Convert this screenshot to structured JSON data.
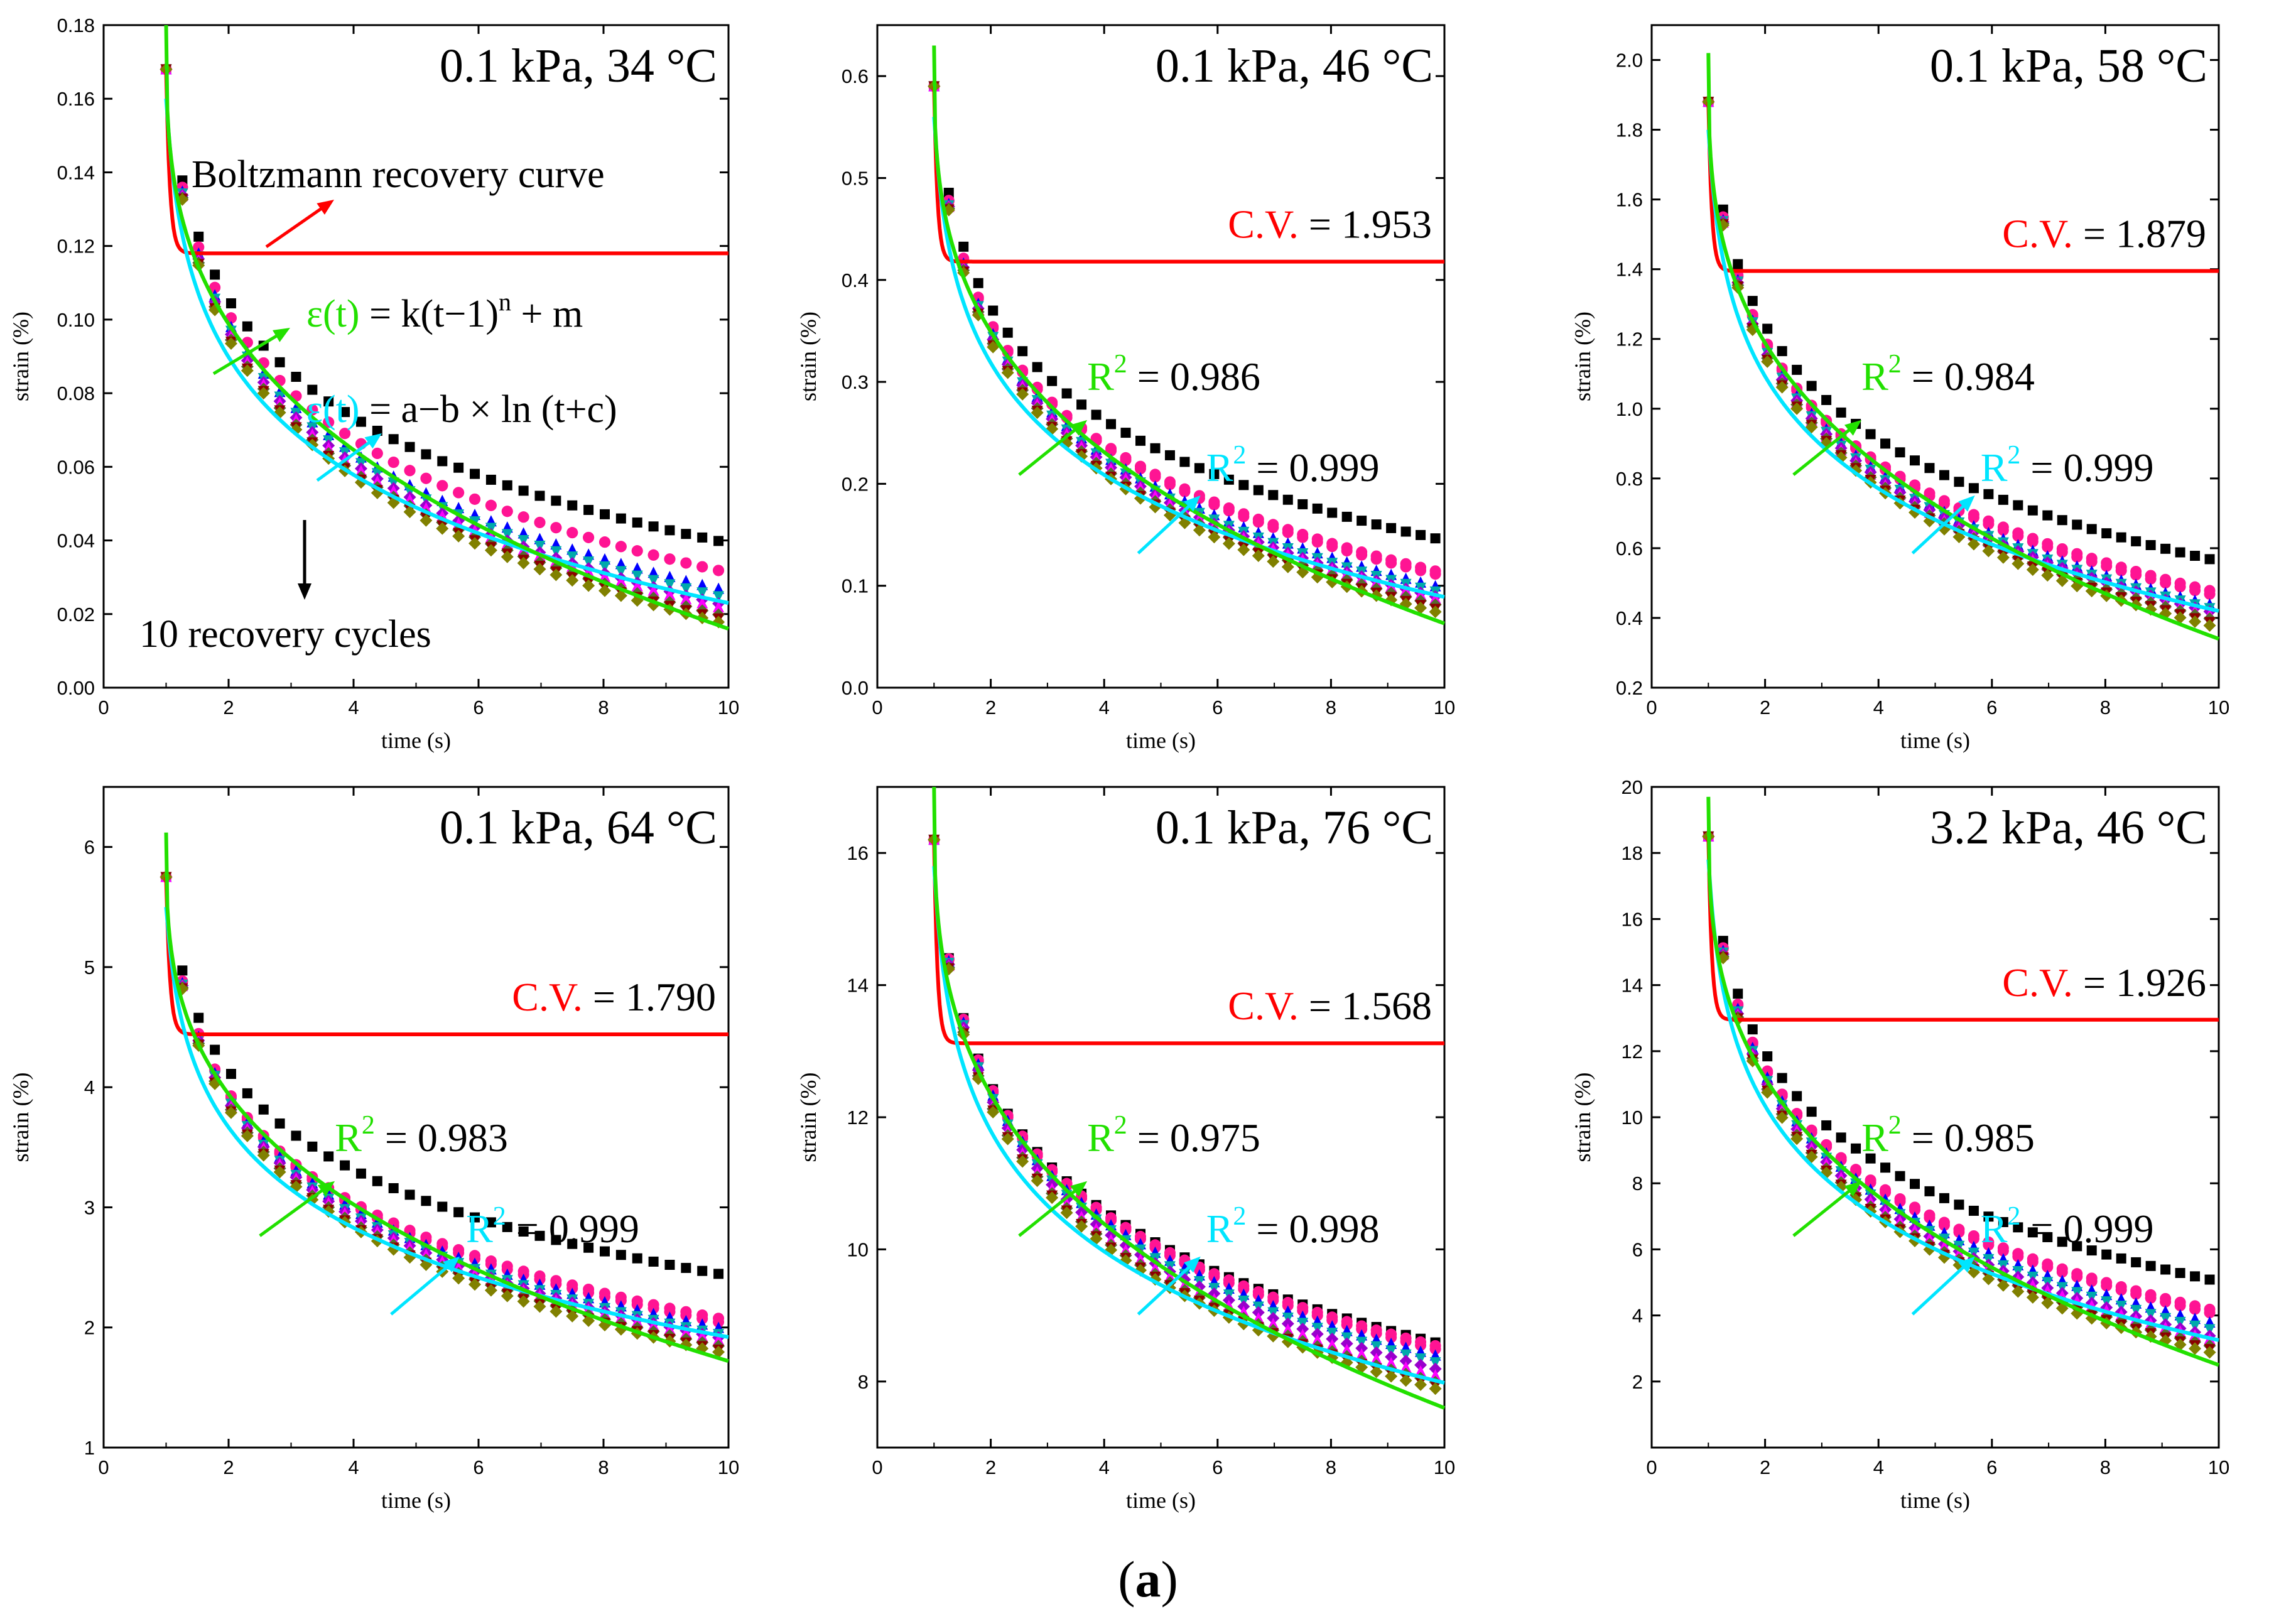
{
  "figure_label": {
    "open": "(",
    "letter": "a",
    "close": ")"
  },
  "colors": {
    "boltzmann": "#ff0000",
    "power": "#22e000",
    "log": "#00e5ff",
    "cycles": [
      "#000000",
      "#ff1493",
      "#ff1493",
      "#0000ff",
      "#00aaaa",
      "#9900cc",
      "#ff00ff",
      "#556b2f",
      "#8b0000",
      "#808000"
    ]
  },
  "chart_data": [
    {
      "type": "scatter",
      "title": "0.1 kPa, 34 °C",
      "xlabel": "time (s)",
      "ylabel": "strain (%)",
      "xlim": [
        0,
        10
      ],
      "ylim": [
        0,
        0.18
      ],
      "xticks": [
        0,
        2,
        4,
        6,
        8,
        10
      ],
      "yticks": [
        0.0,
        0.02,
        0.04,
        0.06,
        0.08,
        0.1,
        0.12,
        0.14,
        0.16,
        0.18
      ],
      "ytick_labels": [
        "0.00",
        "0.02",
        "0.04",
        "0.06",
        "0.08",
        "0.10",
        "0.12",
        "0.14",
        "0.16",
        "0.18"
      ],
      "series_ends": [
        0.04,
        0.032,
        0.032,
        0.027,
        0.025,
        0.023,
        0.022,
        0.02,
        0.019,
        0.018
      ],
      "start_value": 0.168,
      "boltzmann": {
        "peak": 0.168,
        "plateau": 0.118
      },
      "power_fit": {
        "start": 0.18,
        "end": 0.016
      },
      "log_fit": {
        "start": 0.16,
        "end": 0.023
      },
      "annotations": {
        "boltzmann_label": "Boltzmann recovery curve",
        "power_eq_left": "ε(t)",
        "power_eq_right": " = k(t−1)",
        "power_eq_sup": "n",
        "power_eq_tail": " + m",
        "log_eq_left": "ε(t)",
        "log_eq_right": " = a−b × ln (t+c)",
        "cycles_label": "10 recovery cycles"
      }
    },
    {
      "type": "scatter",
      "title": "0.1 kPa, 46 °C",
      "xlabel": "time (s)",
      "ylabel": "strain (%)",
      "xlim": [
        0,
        10
      ],
      "ylim": [
        0,
        0.65
      ],
      "xticks": [
        0,
        2,
        4,
        6,
        8,
        10
      ],
      "yticks": [
        0.0,
        0.1,
        0.2,
        0.3,
        0.4,
        0.5,
        0.6
      ],
      "ytick_labels": [
        "0.0",
        "0.1",
        "0.2",
        "0.3",
        "0.4",
        "0.5",
        "0.6"
      ],
      "series_ends": [
        0.147,
        0.115,
        0.112,
        0.1,
        0.095,
        0.09,
        0.088,
        0.082,
        0.078,
        0.075
      ],
      "start_value": 0.59,
      "boltzmann": {
        "peak": 0.59,
        "plateau": 0.418
      },
      "power_fit": {
        "start": 0.63,
        "end": 0.063
      },
      "log_fit": {
        "start": 0.56,
        "end": 0.089
      },
      "annotations": {
        "cv_label": "C.V.",
        "cv_value": " = 1.953",
        "r2_power": "0.986",
        "r2_log": "0.999"
      }
    },
    {
      "type": "scatter",
      "title": "0.1 kPa, 58 °C",
      "xlabel": "time (s)",
      "ylabel": "strain (%)",
      "xlim": [
        0,
        10
      ],
      "ylim": [
        0.2,
        2.1
      ],
      "xticks": [
        0,
        2,
        4,
        6,
        8,
        10
      ],
      "yticks": [
        0.2,
        0.4,
        0.6,
        0.8,
        1.0,
        1.2,
        1.4,
        1.6,
        1.8,
        2.0
      ],
      "ytick_labels": [
        "0.2",
        "0.4",
        "0.6",
        "0.8",
        "1.0",
        "1.2",
        "1.4",
        "1.6",
        "1.8",
        "2.0"
      ],
      "series_ends": [
        0.57,
        0.48,
        0.47,
        0.44,
        0.43,
        0.42,
        0.41,
        0.4,
        0.39,
        0.38
      ],
      "start_value": 1.88,
      "boltzmann": {
        "peak": 1.88,
        "plateau": 1.395
      },
      "power_fit": {
        "start": 2.02,
        "end": 0.34
      },
      "log_fit": {
        "start": 1.8,
        "end": 0.42
      },
      "annotations": {
        "cv_label": "C.V.",
        "cv_value": " = 1.879",
        "r2_power": "0.984",
        "r2_log": "0.999"
      }
    },
    {
      "type": "scatter",
      "title": "0.1 kPa, 64 °C",
      "xlabel": "time (s)",
      "ylabel": "strain (%)",
      "xlim": [
        0,
        10
      ],
      "ylim": [
        1,
        6.5
      ],
      "xticks": [
        0,
        2,
        4,
        6,
        8,
        10
      ],
      "yticks": [
        1,
        2,
        3,
        4,
        5,
        6
      ],
      "ytick_labels": [
        "1",
        "2",
        "3",
        "4",
        "5",
        "6"
      ],
      "series_ends": [
        2.45,
        2.08,
        2.05,
        2.0,
        1.95,
        1.92,
        1.9,
        1.85,
        1.82,
        1.8
      ],
      "start_value": 5.75,
      "boltzmann": {
        "peak": 5.75,
        "plateau": 4.44
      },
      "power_fit": {
        "start": 6.12,
        "end": 1.72
      },
      "log_fit": {
        "start": 5.5,
        "end": 1.92
      },
      "annotations": {
        "cv_label": "C.V.",
        "cv_value": " = 1.790",
        "r2_power": "0.983",
        "r2_log": "0.999"
      }
    },
    {
      "type": "scatter",
      "title": "0.1 kPa, 76 °C",
      "xlabel": "time (s)",
      "ylabel": "strain (%)",
      "xlim": [
        0,
        10
      ],
      "ylim": [
        7,
        17
      ],
      "xticks": [
        0,
        2,
        4,
        6,
        8,
        10
      ],
      "yticks": [
        8,
        10,
        12,
        14,
        16
      ],
      "ytick_labels": [
        "8",
        "10",
        "12",
        "14",
        "16"
      ],
      "series_ends": [
        8.6,
        8.55,
        8.5,
        8.4,
        8.3,
        8.2,
        8.1,
        8.0,
        7.95,
        7.9
      ],
      "start_value": 16.2,
      "boltzmann": {
        "peak": 16.2,
        "plateau": 13.12
      },
      "power_fit": {
        "start": 17.0,
        "end": 7.6
      },
      "log_fit": {
        "start": 15.8,
        "end": 7.98
      },
      "annotations": {
        "cv_label": "C.V.",
        "cv_value": " = 1.568",
        "r2_power": "0.975",
        "r2_log": "0.998"
      }
    },
    {
      "type": "scatter",
      "title": "3.2 kPa, 46 °C",
      "xlabel": "time (s)",
      "ylabel": "strain (%)",
      "xlim": [
        0,
        10
      ],
      "ylim": [
        0,
        20
      ],
      "xticks": [
        0,
        2,
        4,
        6,
        8,
        10
      ],
      "yticks": [
        2,
        4,
        6,
        8,
        10,
        12,
        14,
        16,
        18,
        20
      ],
      "ytick_labels": [
        "2",
        "4",
        "6",
        "8",
        "10",
        "12",
        "14",
        "16",
        "18",
        "20"
      ],
      "series_ends": [
        5.1,
        4.2,
        4.1,
        3.8,
        3.6,
        3.4,
        3.3,
        3.1,
        3.0,
        2.9
      ],
      "start_value": 18.5,
      "boltzmann": {
        "peak": 18.5,
        "plateau": 12.95
      },
      "power_fit": {
        "start": 19.7,
        "end": 2.5
      },
      "log_fit": {
        "start": 17.8,
        "end": 3.25
      },
      "annotations": {
        "cv_label": "C.V.",
        "cv_value": " = 1.926",
        "r2_power": "0.985",
        "r2_log": "0.999"
      }
    }
  ]
}
